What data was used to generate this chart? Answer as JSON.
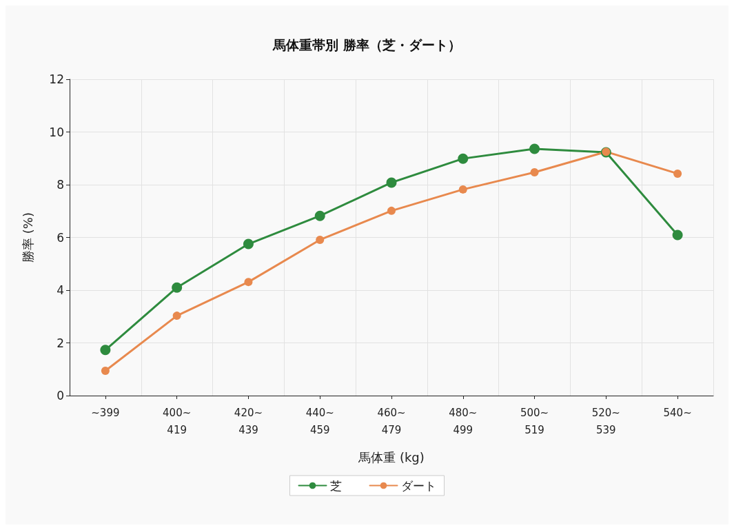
{
  "chart_data": {
    "type": "line",
    "title": "馬体重帯別 勝率（芝・ダート）",
    "xlabel": "馬体重 (kg)",
    "ylabel": "勝率 (%)",
    "categories": [
      "~399",
      "400~\n419",
      "420~\n439",
      "440~\n459",
      "460~\n479",
      "480~\n499",
      "500~\n519",
      "520~\n539",
      "540~"
    ],
    "series": [
      {
        "name": "芝",
        "color": "#2e8b3e",
        "values": [
          1.73,
          4.1,
          5.75,
          6.82,
          8.08,
          8.99,
          9.36,
          9.23,
          6.09
        ]
      },
      {
        "name": "ダート",
        "color": "#e8894e",
        "values": [
          0.94,
          3.03,
          4.31,
          5.91,
          7.01,
          7.82,
          8.47,
          9.25,
          8.42
        ]
      }
    ],
    "ylim": [
      0,
      12
    ],
    "yticks": [
      0,
      2,
      4,
      6,
      8,
      10,
      12
    ],
    "grid": true,
    "legend": "bottom",
    "marker": "circle",
    "line_style": "solid"
  }
}
